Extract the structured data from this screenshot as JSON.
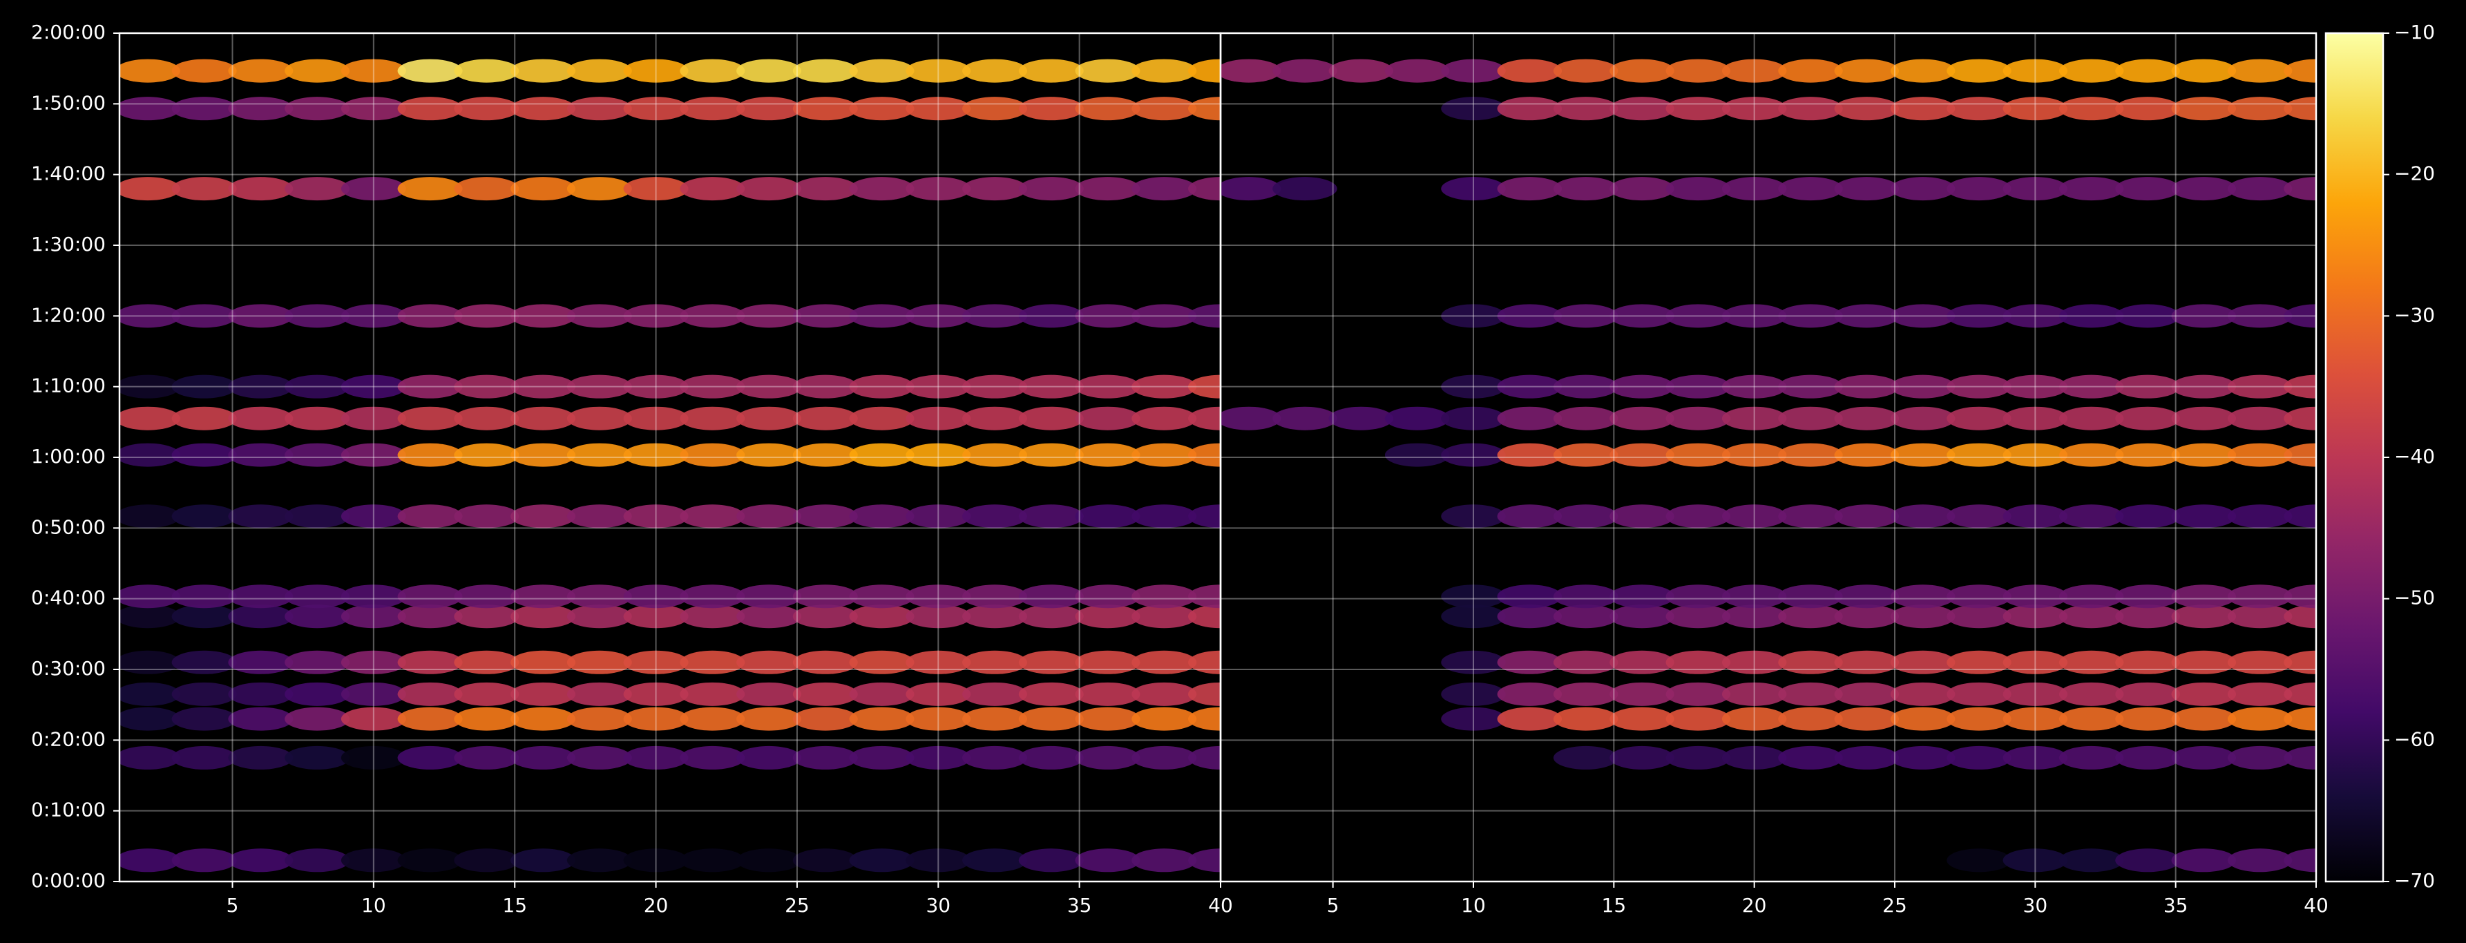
{
  "chart_data": [
    {
      "type": "heatmap",
      "x": [
        2,
        4,
        6,
        8,
        10,
        12,
        14,
        16,
        18,
        20,
        22,
        24,
        26,
        28,
        30,
        32,
        34,
        36,
        38,
        40
      ],
      "y": [
        180,
        1050,
        1380,
        1590,
        1860,
        2250,
        2420,
        3100,
        3620,
        3930,
        4200,
        4800,
        5880,
        6560,
        6880
      ],
      "z": [
        [
          -58,
          -57,
          -58,
          -60,
          -66,
          -68,
          -66,
          -64,
          -67,
          -68,
          -68,
          -68,
          -66,
          -64,
          -65,
          -64,
          -60,
          -56,
          -55,
          -55
        ],
        [
          -60,
          -60,
          -62,
          -64,
          -68,
          -58,
          -56,
          -56,
          -55,
          -56,
          -56,
          -57,
          -56,
          -56,
          -57,
          -56,
          -56,
          -55,
          -55,
          -55
        ],
        [
          -64,
          -62,
          -56,
          -50,
          -40,
          -30,
          -28,
          -28,
          -30,
          -30,
          -30,
          -30,
          -32,
          -30,
          -30,
          -30,
          -30,
          -30,
          -28,
          -28
        ],
        [
          -64,
          -62,
          -60,
          -58,
          -55,
          -42,
          -40,
          -40,
          -42,
          -40,
          -40,
          -42,
          -40,
          -42,
          -40,
          -42,
          -40,
          -40,
          -40,
          -38
        ],
        [
          -66,
          -62,
          -56,
          -52,
          -48,
          -40,
          -36,
          -34,
          -34,
          -35,
          -35,
          -36,
          -36,
          -35,
          -36,
          -36,
          -36,
          -36,
          -36,
          -36
        ],
        [
          -66,
          -64,
          -60,
          -56,
          -52,
          -48,
          -44,
          -42,
          -44,
          -42,
          -44,
          -46,
          -44,
          -42,
          -44,
          -44,
          -44,
          -42,
          -42,
          -40
        ],
        [
          -56,
          -56,
          -56,
          -56,
          -56,
          -52,
          -52,
          -50,
          -50,
          -52,
          -52,
          -52,
          -50,
          -50,
          -50,
          -50,
          -52,
          -50,
          -48,
          -48
        ],
        [
          -66,
          -64,
          -62,
          -62,
          -56,
          -48,
          -48,
          -46,
          -48,
          -46,
          -46,
          -48,
          -50,
          -52,
          -54,
          -56,
          -56,
          -58,
          -58,
          -58
        ],
        [
          -60,
          -58,
          -56,
          -54,
          -50,
          -26,
          -24,
          -25,
          -24,
          -24,
          -26,
          -24,
          -24,
          -22,
          -22,
          -24,
          -24,
          -25,
          -26,
          -28
        ],
        [
          -38,
          -38,
          -40,
          -40,
          -42,
          -38,
          -38,
          -38,
          -38,
          -38,
          -38,
          -38,
          -38,
          -38,
          -40,
          -40,
          -40,
          -42,
          -40,
          -40
        ],
        [
          -66,
          -64,
          -62,
          -60,
          -58,
          -46,
          -44,
          -44,
          -44,
          -44,
          -44,
          -44,
          -44,
          -42,
          -42,
          -42,
          -42,
          -42,
          -40,
          -36
        ],
        [
          -54,
          -54,
          -52,
          -54,
          -54,
          -48,
          -46,
          -46,
          -48,
          -48,
          -48,
          -48,
          -50,
          -52,
          -52,
          -54,
          -56,
          -52,
          -52,
          -54
        ],
        [
          -36,
          -38,
          -40,
          -44,
          -50,
          -26,
          -30,
          -28,
          -26,
          -34,
          -40,
          -42,
          -44,
          -46,
          -46,
          -46,
          -48,
          -48,
          -50,
          -48
        ],
        [
          -52,
          -52,
          -50,
          -48,
          -46,
          -36,
          -36,
          -36,
          -38,
          -36,
          -36,
          -36,
          -34,
          -34,
          -34,
          -32,
          -34,
          -32,
          -32,
          -30
        ],
        [
          -26,
          -28,
          -26,
          -24,
          -26,
          -14,
          -16,
          -18,
          -20,
          -22,
          -18,
          -16,
          -16,
          -18,
          -20,
          -20,
          -20,
          -18,
          -20,
          -22
        ]
      ],
      "xlim": [
        1,
        40
      ],
      "ylim": [
        0,
        7200
      ],
      "xticks": [
        5,
        10,
        15,
        20,
        25,
        30,
        35,
        40
      ],
      "yticks": [
        {
          "value": 0,
          "label": "0:00:00"
        },
        {
          "value": 600,
          "label": "0:10:00"
        },
        {
          "value": 1200,
          "label": "0:20:00"
        },
        {
          "value": 1800,
          "label": "0:30:00"
        },
        {
          "value": 2400,
          "label": "0:40:00"
        },
        {
          "value": 3000,
          "label": "0:50:00"
        },
        {
          "value": 3600,
          "label": "1:00:00"
        },
        {
          "value": 4200,
          "label": "1:10:00"
        },
        {
          "value": 4800,
          "label": "1:20:00"
        },
        {
          "value": 5400,
          "label": "1:30:00"
        },
        {
          "value": 6000,
          "label": "1:40:00"
        },
        {
          "value": 6600,
          "label": "1:50:00"
        },
        {
          "value": 7200,
          "label": "2:00:00"
        }
      ],
      "colormap": "inferno",
      "grid": true
    },
    {
      "type": "heatmap",
      "x": [
        2,
        4,
        6,
        8,
        10,
        12,
        14,
        16,
        18,
        20,
        22,
        24,
        26,
        28,
        30,
        32,
        34,
        36,
        38,
        40
      ],
      "y": [
        180,
        1050,
        1380,
        1590,
        1860,
        2250,
        2420,
        3100,
        3620,
        3930,
        4200,
        4800,
        5880,
        6560,
        6880
      ],
      "z": [
        [
          null,
          null,
          null,
          null,
          null,
          null,
          null,
          null,
          null,
          null,
          null,
          null,
          null,
          -68,
          -64,
          -64,
          -60,
          -56,
          -55,
          -55
        ],
        [
          null,
          null,
          null,
          null,
          null,
          null,
          -62,
          -60,
          -60,
          -60,
          -58,
          -58,
          -58,
          -58,
          -57,
          -56,
          -56,
          -56,
          -55,
          -55
        ],
        [
          null,
          null,
          null,
          null,
          -60,
          -36,
          -34,
          -34,
          -34,
          -32,
          -32,
          -32,
          -30,
          -30,
          -30,
          -30,
          -30,
          -30,
          -28,
          -28
        ],
        [
          null,
          null,
          null,
          null,
          -62,
          -48,
          -46,
          -46,
          -46,
          -44,
          -44,
          -44,
          -42,
          -42,
          -42,
          -42,
          -42,
          -40,
          -40,
          -40
        ],
        [
          null,
          null,
          null,
          null,
          -62,
          -48,
          -44,
          -42,
          -40,
          -40,
          -38,
          -38,
          -38,
          -36,
          -36,
          -36,
          -36,
          -36,
          -36,
          -36
        ],
        [
          null,
          null,
          null,
          null,
          -64,
          -54,
          -52,
          -52,
          -50,
          -50,
          -48,
          -48,
          -48,
          -48,
          -46,
          -46,
          -46,
          -44,
          -44,
          -42
        ],
        [
          null,
          null,
          null,
          null,
          -64,
          -58,
          -56,
          -56,
          -54,
          -54,
          -54,
          -54,
          -52,
          -52,
          -52,
          -52,
          -52,
          -50,
          -50,
          -50
        ],
        [
          null,
          null,
          null,
          null,
          -62,
          -54,
          -54,
          -52,
          -52,
          -52,
          -52,
          -52,
          -54,
          -54,
          -56,
          -56,
          -58,
          -58,
          -58,
          -58
        ],
        [
          null,
          null,
          null,
          -62,
          -60,
          -34,
          -32,
          -32,
          -30,
          -30,
          -30,
          -28,
          -26,
          -24,
          -24,
          -26,
          -26,
          -26,
          -28,
          -30
        ],
        [
          -54,
          -54,
          -56,
          -58,
          -60,
          -50,
          -48,
          -46,
          -46,
          -44,
          -44,
          -44,
          -44,
          -42,
          -42,
          -42,
          -42,
          -42,
          -42,
          -40
        ],
        [
          null,
          null,
          null,
          null,
          -62,
          -56,
          -54,
          -52,
          -52,
          -50,
          -50,
          -48,
          -48,
          -46,
          -46,
          -46,
          -44,
          -44,
          -42,
          -40
        ],
        [
          null,
          null,
          null,
          null,
          -62,
          -56,
          -54,
          -54,
          -54,
          -54,
          -54,
          -54,
          -54,
          -56,
          -56,
          -58,
          -58,
          -54,
          -54,
          -56
        ],
        [
          -56,
          -60,
          null,
          null,
          -58,
          -50,
          -50,
          -50,
          -52,
          -52,
          -52,
          -52,
          -52,
          -52,
          -52,
          -52,
          -52,
          -52,
          -52,
          -50
        ],
        [
          null,
          null,
          null,
          null,
          -62,
          -42,
          -42,
          -42,
          -40,
          -40,
          -40,
          -38,
          -36,
          -36,
          -34,
          -34,
          -34,
          -32,
          -32,
          -32
        ],
        [
          -46,
          -48,
          -46,
          -48,
          -50,
          -34,
          -32,
          -30,
          -30,
          -30,
          -28,
          -26,
          -24,
          -22,
          -22,
          -22,
          -22,
          -22,
          -24,
          -26
        ]
      ],
      "xlim": [
        1,
        40
      ],
      "ylim": [
        0,
        7200
      ],
      "xticks": [
        5,
        10,
        15,
        20,
        25,
        30,
        35,
        40
      ],
      "colormap": "inferno",
      "grid": true,
      "clim": [
        -70,
        -10
      ],
      "cticks": [
        {
          "value": -70,
          "label": "−70"
        },
        {
          "value": -60,
          "label": "−60"
        },
        {
          "value": -50,
          "label": "−50"
        },
        {
          "value": -40,
          "label": "−40"
        },
        {
          "value": -30,
          "label": "−30"
        },
        {
          "value": -20,
          "label": "−20"
        },
        {
          "value": -10,
          "label": "−10"
        }
      ]
    }
  ]
}
